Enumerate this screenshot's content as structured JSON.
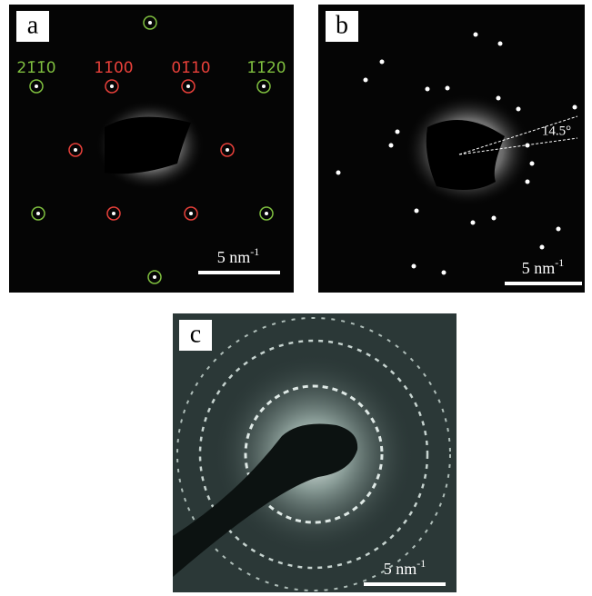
{
  "panels": [
    {
      "label": "a",
      "scale_bar": {
        "text": "5 nm",
        "exponent": "-1"
      },
      "indices": [
        {
          "text": "21̄1̄0",
          "color": "#7fbf3f"
        },
        {
          "text": "11̄00",
          "color": "#e8403a"
        },
        {
          "text": "01̄10",
          "color": "#e8403a"
        },
        {
          "text": "1̄1̄20",
          "color": "#7fbf3f"
        }
      ]
    },
    {
      "label": "b",
      "scale_bar": {
        "text": "5 nm",
        "exponent": "-1"
      },
      "angle": "14.5°"
    },
    {
      "label": "c",
      "scale_bar": {
        "text": "5 nm",
        "exponent": "-1"
      }
    }
  ]
}
